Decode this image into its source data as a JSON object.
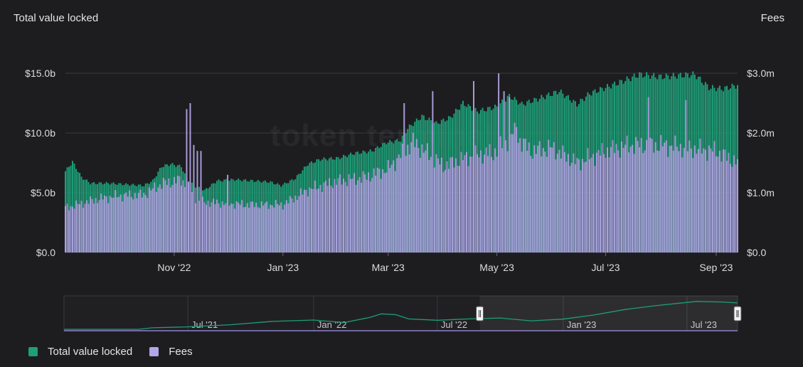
{
  "chart_data": {
    "type": "bar",
    "title": "",
    "left_axis": {
      "title": "Total value locked",
      "ticks": [
        "$0.0",
        "$5.0b",
        "$10.0b",
        "$15.0b"
      ],
      "tick_values": [
        0,
        5,
        10,
        15
      ],
      "ylim": [
        0,
        15
      ],
      "unit": "$b"
    },
    "right_axis": {
      "title": "Fees",
      "ticks": [
        "$0.0",
        "$1.0m",
        "$2.0m",
        "$3.0m"
      ],
      "tick_values": [
        0,
        1,
        2,
        3
      ],
      "ylim": [
        0,
        3
      ],
      "unit": "$m"
    },
    "x_ticks": [
      "Nov '22",
      "Jan '23",
      "Mar '23",
      "May '23",
      "Jul '23",
      "Sep '23"
    ],
    "x_range": [
      "2022-09-01",
      "2023-09-13"
    ],
    "grid": true,
    "watermark": "token terminal",
    "series": [
      {
        "name": "Total value locked",
        "axis": "left",
        "color": "#1f9e78",
        "points": [
          [
            "2022-09-01",
            6.8
          ],
          [
            "2022-09-05",
            7.6
          ],
          [
            "2022-09-10",
            6.3
          ],
          [
            "2022-09-15",
            5.8
          ],
          [
            "2022-09-25",
            5.8
          ],
          [
            "2022-10-05",
            5.7
          ],
          [
            "2022-10-15",
            5.6
          ],
          [
            "2022-10-20",
            6.0
          ],
          [
            "2022-10-25",
            7.2
          ],
          [
            "2022-10-30",
            7.4
          ],
          [
            "2022-11-05",
            7.2
          ],
          [
            "2022-11-08",
            6.2
          ],
          [
            "2022-11-12",
            5.6
          ],
          [
            "2022-11-18",
            5.2
          ],
          [
            "2022-11-25",
            6.0
          ],
          [
            "2022-12-05",
            6.1
          ],
          [
            "2022-12-15",
            6.0
          ],
          [
            "2022-12-25",
            5.9
          ],
          [
            "2022-12-31",
            5.6
          ],
          [
            "2023-01-08",
            6.2
          ],
          [
            "2023-01-15",
            7.4
          ],
          [
            "2023-01-22",
            7.8
          ],
          [
            "2023-02-01",
            7.9
          ],
          [
            "2023-02-10",
            8.3
          ],
          [
            "2023-02-20",
            8.5
          ],
          [
            "2023-02-28",
            9.2
          ],
          [
            "2023-03-08",
            9.4
          ],
          [
            "2023-03-12",
            10.4
          ],
          [
            "2023-03-20",
            11.4
          ],
          [
            "2023-03-28",
            10.8
          ],
          [
            "2023-04-05",
            11.3
          ],
          [
            "2023-04-12",
            12.5
          ],
          [
            "2023-04-20",
            11.8
          ],
          [
            "2023-05-01",
            12.2
          ],
          [
            "2023-05-08",
            13.1
          ],
          [
            "2023-05-15",
            12.4
          ],
          [
            "2023-05-25",
            12.9
          ],
          [
            "2023-06-05",
            13.5
          ],
          [
            "2023-06-15",
            12.4
          ],
          [
            "2023-06-22",
            13.3
          ],
          [
            "2023-07-01",
            13.8
          ],
          [
            "2023-07-10",
            14.3
          ],
          [
            "2023-07-20",
            14.9
          ],
          [
            "2023-08-01",
            14.7
          ],
          [
            "2023-08-10",
            14.8
          ],
          [
            "2023-08-20",
            14.9
          ],
          [
            "2023-08-28",
            13.8
          ],
          [
            "2023-09-05",
            13.7
          ],
          [
            "2023-09-13",
            14.0
          ]
        ]
      },
      {
        "name": "Fees",
        "axis": "right",
        "color": "#b4a5e8",
        "points": [
          [
            "2022-09-01",
            0.75
          ],
          [
            "2022-09-10",
            0.82
          ],
          [
            "2022-09-20",
            0.9
          ],
          [
            "2022-10-01",
            0.95
          ],
          [
            "2022-10-15",
            0.97
          ],
          [
            "2022-10-25",
            1.15
          ],
          [
            "2022-11-05",
            1.22
          ],
          [
            "2022-11-15",
            0.85
          ],
          [
            "2022-12-01",
            0.82
          ],
          [
            "2022-12-15",
            0.8
          ],
          [
            "2023-01-01",
            0.8
          ],
          [
            "2023-01-15",
            1.05
          ],
          [
            "2023-02-01",
            1.2
          ],
          [
            "2023-02-15",
            1.25
          ],
          [
            "2023-03-01",
            1.4
          ],
          [
            "2023-03-15",
            1.85
          ],
          [
            "2023-04-01",
            1.45
          ],
          [
            "2023-04-15",
            1.6
          ],
          [
            "2023-05-01",
            1.7
          ],
          [
            "2023-05-10",
            2.0
          ],
          [
            "2023-05-20",
            1.7
          ],
          [
            "2023-06-01",
            1.75
          ],
          [
            "2023-06-15",
            1.5
          ],
          [
            "2023-07-01",
            1.7
          ],
          [
            "2023-07-15",
            1.8
          ],
          [
            "2023-08-01",
            1.8
          ],
          [
            "2023-08-15",
            1.75
          ],
          [
            "2023-09-01",
            1.7
          ],
          [
            "2023-09-13",
            1.5
          ]
        ],
        "spikes": [
          [
            "2022-11-08",
            2.4
          ],
          [
            "2022-11-10",
            2.5
          ],
          [
            "2022-11-12",
            1.8
          ],
          [
            "2022-11-14",
            1.7
          ],
          [
            "2022-11-16",
            1.7
          ],
          [
            "2022-12-01",
            1.3
          ],
          [
            "2023-03-10",
            2.5
          ],
          [
            "2023-03-26",
            2.7
          ],
          [
            "2023-04-18",
            2.87
          ],
          [
            "2023-04-28",
            1.6
          ],
          [
            "2023-05-02",
            3.0
          ],
          [
            "2023-05-05",
            2.7
          ],
          [
            "2023-05-08",
            2.6
          ],
          [
            "2023-05-12",
            2.1
          ],
          [
            "2023-07-25",
            2.6
          ],
          [
            "2023-08-15",
            2.55
          ]
        ]
      }
    ],
    "navigator": {
      "ticks": [
        "Jul '21",
        "Jan '22",
        "Jul '22",
        "Jan '23",
        "Jul '23"
      ],
      "x_range": [
        "2021-01-01",
        "2023-09-13"
      ],
      "selected_range": [
        "2022-09-01",
        "2023-09-13"
      ],
      "points": [
        [
          "2021-01-01",
          0.0
        ],
        [
          "2021-04-20",
          0.0
        ],
        [
          "2021-05-10",
          0.8
        ],
        [
          "2021-07-01",
          1.3
        ],
        [
          "2021-09-01",
          2.4
        ],
        [
          "2021-11-01",
          4.2
        ],
        [
          "2022-01-01",
          4.9
        ],
        [
          "2022-02-15",
          3.6
        ],
        [
          "2022-03-25",
          6.4
        ],
        [
          "2022-04-10",
          8.2
        ],
        [
          "2022-05-01",
          7.8
        ],
        [
          "2022-05-20",
          5.5
        ],
        [
          "2022-07-01",
          4.8
        ],
        [
          "2022-08-15",
          5.5
        ],
        [
          "2022-10-01",
          6.0
        ],
        [
          "2022-11-15",
          4.5
        ],
        [
          "2023-01-01",
          5.4
        ],
        [
          "2023-02-15",
          7.6
        ],
        [
          "2023-04-01",
          10.5
        ],
        [
          "2023-05-15",
          12.5
        ],
        [
          "2023-07-15",
          14.8
        ],
        [
          "2023-08-20",
          14.5
        ],
        [
          "2023-09-13",
          14.0
        ]
      ]
    }
  },
  "legend": {
    "items": [
      {
        "label": "Total value locked",
        "color": "#1f9e78"
      },
      {
        "label": "Fees",
        "color": "#b4a5e8"
      }
    ]
  }
}
